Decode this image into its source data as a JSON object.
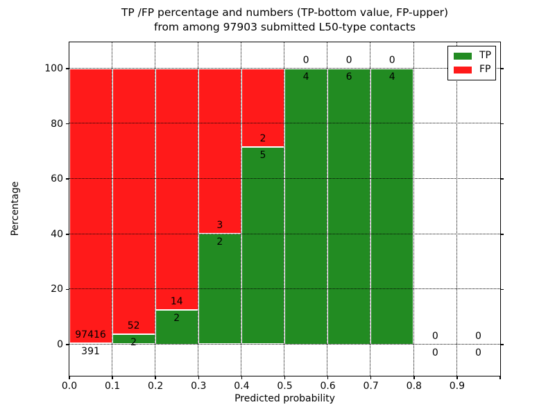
{
  "figure": {
    "title_line1": "TP /FP percentage and numbers (TP-bottom value, FP-upper)",
    "title_line2": "from among 97903 submitted L50-type contacts"
  },
  "chart_data": {
    "type": "bar",
    "subtype": "stacked-percentage-histogram",
    "title": "TP /FP percentage and numbers (TP-bottom value, FP-upper) from among 97903 submitted L50-type contacts",
    "xlabel": "Predicted probability",
    "ylabel": "Percentage",
    "total_submitted": 97903,
    "bin_edges": [
      0.0,
      0.1,
      0.2,
      0.3,
      0.4,
      0.5,
      0.6,
      0.7,
      0.8,
      0.9,
      1.0
    ],
    "x_tick_labels": [
      "0.0",
      "0.1",
      "0.2",
      "0.3",
      "0.4",
      "0.5",
      "0.6",
      "0.7",
      "0.8",
      "0.9"
    ],
    "y_ticks": [
      0,
      20,
      40,
      60,
      80,
      100
    ],
    "y_tick_labels": [
      "0",
      "20",
      "40",
      "60",
      "80",
      "100"
    ],
    "xlim": [
      0.0,
      1.0
    ],
    "ylim": [
      -11.3,
      109.6
    ],
    "grid": true,
    "grid_style": "dotted",
    "bar_edge_color": "#ffffff",
    "series": [
      {
        "name": "TP",
        "color": "#228b22",
        "counts": [
          391,
          2,
          2,
          2,
          5,
          4,
          6,
          4,
          0,
          0
        ]
      },
      {
        "name": "FP",
        "color": "#ff1a1a",
        "counts": [
          97416,
          52,
          14,
          3,
          2,
          0,
          0,
          0,
          0,
          0
        ]
      }
    ],
    "tp_percent_by_bin": [
      0.4,
      3.7,
      12.5,
      40.0,
      71.4,
      100.0,
      100.0,
      100.0,
      0.0,
      0.0
    ],
    "legend": [
      {
        "label": "TP",
        "color": "#228b22"
      },
      {
        "label": "FP",
        "color": "#ff1a1a"
      }
    ],
    "legend_position": "upper right"
  }
}
